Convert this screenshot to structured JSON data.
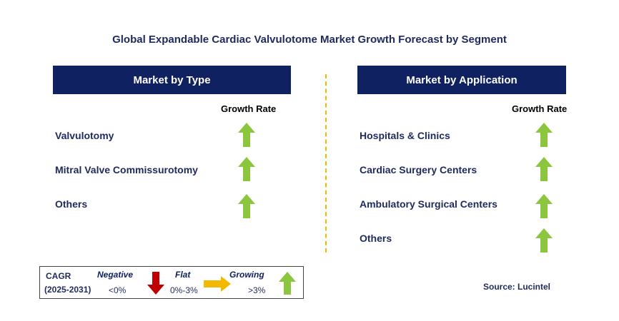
{
  "title": "Global Expandable Cardiac Valvulotome Market Growth Forecast by Segment",
  "type_panel": {
    "header": "Market by Type",
    "growth_rate_label": "Growth Rate",
    "items": [
      {
        "label": "Valvulotomy",
        "trend": "growing"
      },
      {
        "label": "Mitral Valve Commissurotomy",
        "trend": "growing"
      },
      {
        "label": "Others",
        "trend": "growing"
      }
    ]
  },
  "application_panel": {
    "header": "Market by Application",
    "growth_rate_label": "Growth Rate",
    "items": [
      {
        "label": "Hospitals & Clinics",
        "trend": "growing"
      },
      {
        "label": "Cardiac Surgery Centers",
        "trend": "growing"
      },
      {
        "label": "Ambulatory Surgical Centers",
        "trend": "growing"
      },
      {
        "label": "Others",
        "trend": "growing"
      }
    ]
  },
  "legend": {
    "cagr": "CAGR",
    "period": "(2025-2031)",
    "negative": {
      "label": "Negative",
      "range": "<0%"
    },
    "flat": {
      "label": "Flat",
      "range": "0%-3%"
    },
    "growing": {
      "label": "Growing",
      "range": ">3%"
    }
  },
  "source": "Source: Lucintel",
  "colors": {
    "header_bg": "#0f2161",
    "growing_arrow": "#8cc63f",
    "negative_arrow": "#c00000",
    "flat_arrow": "#f5b800",
    "divider": "#f5b800"
  }
}
